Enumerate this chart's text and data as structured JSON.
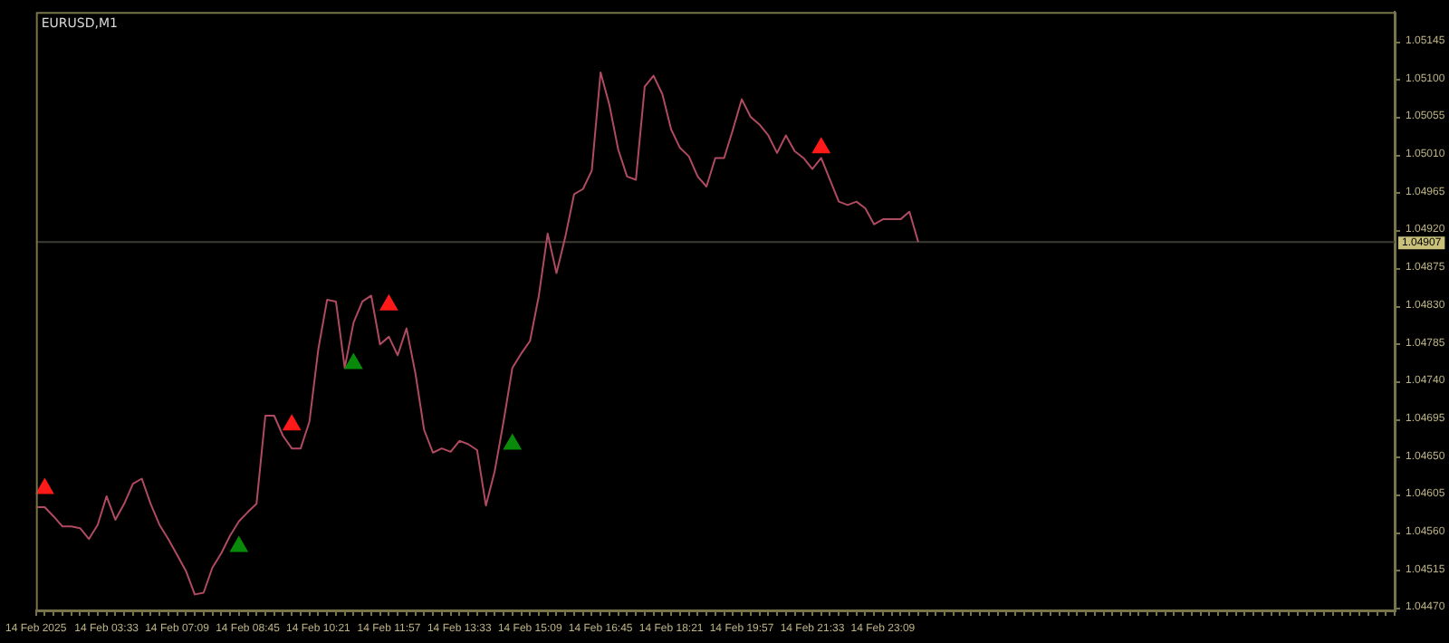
{
  "chart_data": {
    "type": "line",
    "title": "EURUSD,M1",
    "categories": [
      "14 Feb 2025",
      null,
      null,
      null,
      null,
      null,
      null,
      null,
      "14 Feb 03:33",
      null,
      null,
      null,
      null,
      null,
      null,
      null,
      "14 Feb 07:09",
      null,
      null,
      null,
      null,
      null,
      null,
      null,
      "14 Feb 08:45",
      null,
      null,
      null,
      null,
      null,
      null,
      null,
      "14 Feb 10:21",
      null,
      null,
      null,
      null,
      null,
      null,
      null,
      "14 Feb 11:57",
      null,
      null,
      null,
      null,
      null,
      null,
      null,
      "14 Feb 13:33",
      null,
      null,
      null,
      null,
      null,
      null,
      null,
      "14 Feb 15:09",
      null,
      null,
      null,
      null,
      null,
      null,
      null,
      "14 Feb 16:45",
      null,
      null,
      null,
      null,
      null,
      null,
      null,
      "14 Feb 18:21",
      null,
      null,
      null,
      null,
      null,
      null,
      null,
      "14 Feb 19:57",
      null,
      null,
      null,
      null,
      null,
      null,
      null,
      "14 Feb 21:33",
      null,
      null,
      null,
      null,
      null,
      null,
      null,
      "14 Feb 23:09",
      null,
      null,
      null,
      null,
      null,
      null,
      null,
      null,
      null,
      null,
      null,
      null,
      null,
      null,
      null,
      null,
      null,
      null,
      null,
      null,
      null,
      null,
      null,
      null,
      null,
      null,
      null,
      null,
      null,
      null,
      null,
      null,
      null,
      null,
      null,
      null,
      null,
      null,
      null,
      null,
      null,
      null,
      null,
      null,
      null,
      null,
      null,
      null,
      null,
      null,
      null,
      null,
      null,
      null,
      null,
      null,
      null,
      null
    ],
    "series": [
      {
        "type": "line",
        "color": "#b04a60",
        "marker": "none",
        "values": [
          1.04591,
          1.04591,
          1.0458,
          1.04568,
          1.04568,
          1.04566,
          1.04553,
          1.0457,
          1.04604,
          1.04576,
          1.04595,
          1.04619,
          1.04625,
          1.04595,
          1.0457,
          1.04553,
          1.04534,
          1.04515,
          1.04487,
          1.04489,
          1.04519,
          1.04536,
          1.04557,
          1.04574,
          1.04585,
          1.04595,
          1.047,
          1.047,
          1.04676,
          1.04661,
          1.04661,
          1.04693,
          1.04779,
          1.04838,
          1.04836,
          1.04757,
          1.04811,
          1.04836,
          1.04843,
          1.04785,
          1.04794,
          1.04772,
          1.04804,
          1.04751,
          1.04683,
          1.04656,
          1.04661,
          1.04657,
          1.0467,
          1.04666,
          1.04659,
          1.04593,
          1.04634,
          1.04693,
          1.04757,
          1.04774,
          1.04789,
          1.04843,
          1.04917,
          1.0487,
          1.04913,
          1.04964,
          1.0497,
          1.04992,
          1.05109,
          1.0507,
          1.05017,
          1.04985,
          1.04981,
          1.05092,
          1.05105,
          1.05083,
          1.05041,
          1.05019,
          1.05009,
          1.04985,
          1.04973,
          1.05007,
          1.05007,
          1.05041,
          1.05077,
          1.05056,
          1.05047,
          1.05034,
          1.05013,
          1.05034,
          1.05015,
          1.05007,
          1.04994,
          1.05007,
          1.04981,
          1.04955,
          1.04951,
          1.04955,
          1.04947,
          1.04928,
          1.04934,
          1.04934,
          1.04934,
          1.04943,
          1.04907,
          null,
          null,
          null,
          null,
          null,
          null,
          null,
          null,
          null,
          null,
          null,
          null,
          null,
          null,
          null,
          null,
          null,
          null,
          null,
          null,
          null,
          null,
          null,
          null,
          null,
          null,
          null,
          null,
          null,
          null,
          null,
          null,
          null,
          null,
          null,
          null,
          null,
          null,
          null,
          null,
          null,
          null,
          null,
          null,
          null,
          null,
          null,
          null,
          null,
          null,
          null,
          null,
          null,
          null
        ]
      },
      {
        "type": "scatter",
        "color": "#ff1a1a",
        "marker": "triangle",
        "values": [
          null,
          1.04613,
          null,
          null,
          null,
          null,
          null,
          null,
          null,
          null,
          null,
          null,
          null,
          null,
          null,
          null,
          null,
          null,
          null,
          null,
          null,
          null,
          null,
          null,
          null,
          null,
          null,
          null,
          null,
          1.04689,
          null,
          null,
          null,
          null,
          null,
          null,
          null,
          null,
          null,
          null,
          1.04832,
          null,
          null,
          null,
          null,
          null,
          null,
          null,
          null,
          null,
          null,
          null,
          null,
          null,
          null,
          null,
          null,
          null,
          null,
          null,
          null,
          null,
          null,
          null,
          null,
          null,
          null,
          null,
          null,
          null,
          null,
          null,
          null,
          null,
          null,
          null,
          null,
          null,
          null,
          null,
          null,
          null,
          null,
          null,
          null,
          null,
          null,
          null,
          null,
          1.05019,
          null,
          null,
          null,
          null,
          null,
          null,
          null,
          null,
          null,
          null,
          null,
          null,
          null,
          null,
          null,
          null,
          null,
          null,
          null,
          null,
          null,
          null,
          null,
          null,
          null,
          null,
          null,
          null,
          null,
          null,
          null,
          null,
          null,
          null,
          null,
          null,
          null,
          null,
          null,
          null,
          null,
          null,
          null,
          null,
          null,
          null,
          null,
          null,
          null,
          null,
          null,
          null,
          null,
          null,
          null,
          null,
          null,
          null,
          null,
          null,
          null,
          null,
          null,
          null,
          null
        ]
      },
      {
        "type": "scatter",
        "color": "#0a8a0a",
        "marker": "triangle",
        "values": [
          null,
          null,
          null,
          null,
          null,
          null,
          null,
          null,
          null,
          null,
          null,
          null,
          null,
          null,
          null,
          null,
          null,
          null,
          null,
          null,
          null,
          null,
          null,
          1.04544,
          null,
          null,
          null,
          null,
          null,
          null,
          null,
          null,
          null,
          null,
          null,
          null,
          1.04762,
          null,
          null,
          null,
          null,
          null,
          null,
          null,
          null,
          null,
          null,
          null,
          null,
          null,
          null,
          null,
          null,
          null,
          1.04666,
          null,
          null,
          null,
          null,
          null,
          null,
          null,
          null,
          null,
          null,
          null,
          null,
          null,
          null,
          null,
          null,
          null,
          null,
          null,
          null,
          null,
          null,
          null,
          null,
          null,
          null,
          null,
          null,
          null,
          null,
          null,
          null,
          null,
          null,
          null,
          null,
          null,
          null,
          null,
          null,
          null,
          null,
          null,
          null,
          null,
          null,
          null,
          null,
          null,
          null,
          null,
          null,
          null,
          null,
          null,
          null,
          null,
          null,
          null,
          null,
          null,
          null,
          null,
          null,
          null,
          null,
          null,
          null,
          null,
          null,
          null,
          null,
          null,
          null,
          null,
          null,
          null,
          null,
          null,
          null,
          null,
          null,
          null,
          null,
          null,
          null,
          null,
          null,
          null,
          null,
          null,
          null,
          null,
          null,
          null,
          null,
          null,
          null,
          null,
          null
        ]
      }
    ],
    "ylim": [
      1.04468,
      1.05181
    ],
    "yticks": [
      {
        "value": 1.0447,
        "label": "1.04470"
      },
      1.04515,
      {
        "value": 1.0456,
        "label": "1.04560"
      },
      1.04605,
      {
        "value": 1.0465,
        "label": "1.04650"
      },
      1.04695,
      {
        "value": 1.0474,
        "label": "1.04740"
      },
      1.04785,
      {
        "value": 1.0483,
        "label": "1.04830"
      },
      1.04875,
      {
        "value": 1.0492,
        "label": "1.04920"
      },
      1.04965,
      {
        "value": 1.0501,
        "label": "1.05010"
      },
      1.05055,
      {
        "value": 1.051,
        "label": "1.05100"
      },
      1.05145
    ],
    "ref_lines": [
      {
        "axis": "y",
        "value": 1.04907,
        "label": "1.04907",
        "color": "#3c3c34"
      }
    ],
    "legend": false
  }
}
